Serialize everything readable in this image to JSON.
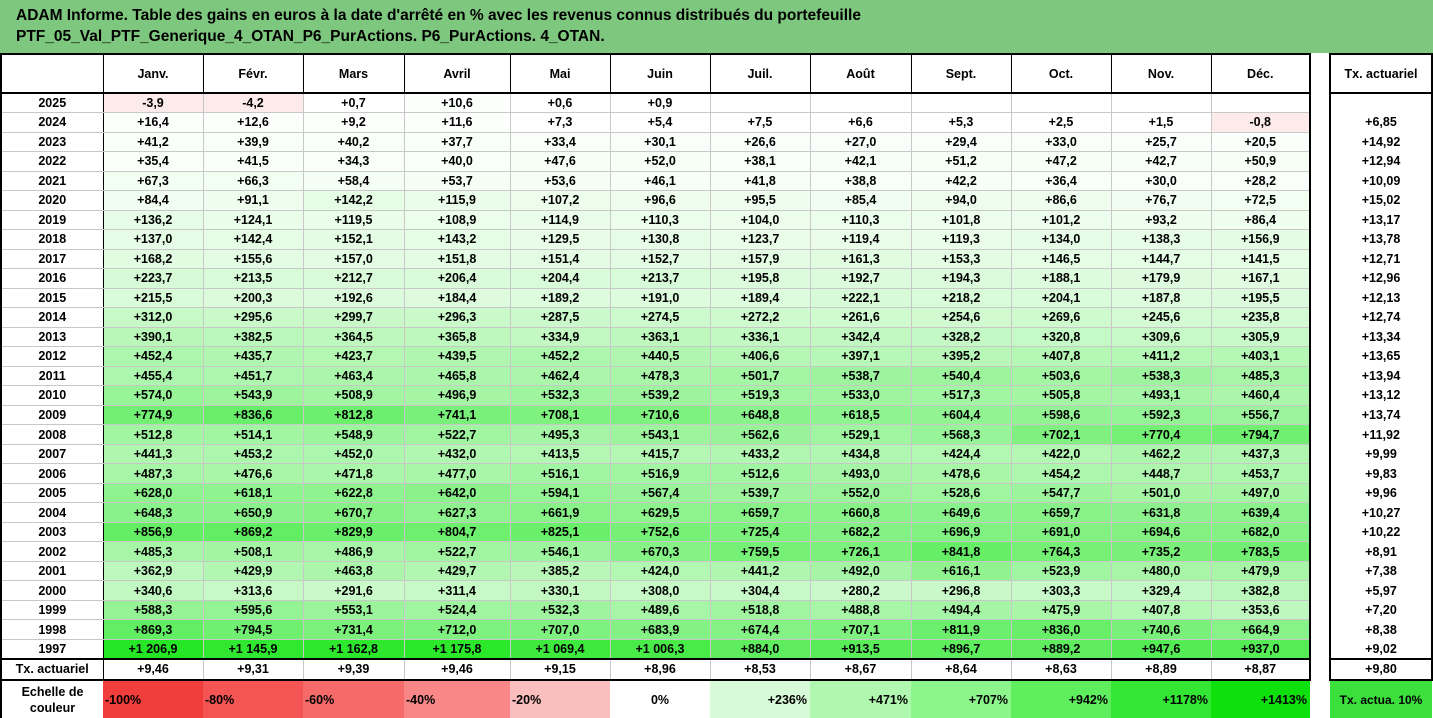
{
  "title": {
    "line1": "ADAM Informe. Table des gains en euros à la date d'arrêté en % avec les revenus connus distribués du portefeuille",
    "line2": "PTF_05_Val_PTF_Generique_4_OTAN_P6_PurActions. P6_PurActions. 4_OTAN."
  },
  "months": [
    "Janv.",
    "Févr.",
    "Mars",
    "Avril",
    "Mai",
    "Juin",
    "Juil.",
    "Août",
    "Sept.",
    "Oct.",
    "Nov.",
    "Déc."
  ],
  "side_header": "Tx. actuariel",
  "rows": [
    {
      "year": "2025",
      "values": [
        "-3,9",
        "-4,2",
        "+0,7",
        "+10,6",
        "+0,6",
        "+0,9",
        "",
        "",
        "",
        "",
        "",
        ""
      ],
      "tx": ""
    },
    {
      "year": "2024",
      "values": [
        "+16,4",
        "+12,6",
        "+9,2",
        "+11,6",
        "+7,3",
        "+5,4",
        "+7,5",
        "+6,6",
        "+5,3",
        "+2,5",
        "+1,5",
        "-0,8"
      ],
      "tx": "+6,85"
    },
    {
      "year": "2023",
      "values": [
        "+41,2",
        "+39,9",
        "+40,2",
        "+37,7",
        "+33,4",
        "+30,1",
        "+26,6",
        "+27,0",
        "+29,4",
        "+33,0",
        "+25,7",
        "+20,5"
      ],
      "tx": "+14,92"
    },
    {
      "year": "2022",
      "values": [
        "+35,4",
        "+41,5",
        "+34,3",
        "+40,0",
        "+47,6",
        "+52,0",
        "+38,1",
        "+42,1",
        "+51,2",
        "+47,2",
        "+42,7",
        "+50,9"
      ],
      "tx": "+12,94"
    },
    {
      "year": "2021",
      "values": [
        "+67,3",
        "+66,3",
        "+58,4",
        "+53,7",
        "+53,6",
        "+46,1",
        "+41,8",
        "+38,8",
        "+42,2",
        "+36,4",
        "+30,0",
        "+28,2"
      ],
      "tx": "+10,09"
    },
    {
      "year": "2020",
      "values": [
        "+84,4",
        "+91,1",
        "+142,2",
        "+115,9",
        "+107,2",
        "+96,6",
        "+95,5",
        "+85,4",
        "+94,0",
        "+86,6",
        "+76,7",
        "+72,5"
      ],
      "tx": "+15,02"
    },
    {
      "year": "2019",
      "values": [
        "+136,2",
        "+124,1",
        "+119,5",
        "+108,9",
        "+114,9",
        "+110,3",
        "+104,0",
        "+110,3",
        "+101,8",
        "+101,2",
        "+93,2",
        "+86,4"
      ],
      "tx": "+13,17"
    },
    {
      "year": "2018",
      "values": [
        "+137,0",
        "+142,4",
        "+152,1",
        "+143,2",
        "+129,5",
        "+130,8",
        "+123,7",
        "+119,4",
        "+119,3",
        "+134,0",
        "+138,3",
        "+156,9"
      ],
      "tx": "+13,78"
    },
    {
      "year": "2017",
      "values": [
        "+168,2",
        "+155,6",
        "+157,0",
        "+151,8",
        "+151,4",
        "+152,7",
        "+157,9",
        "+161,3",
        "+153,3",
        "+146,5",
        "+144,7",
        "+141,5"
      ],
      "tx": "+12,71"
    },
    {
      "year": "2016",
      "values": [
        "+223,7",
        "+213,5",
        "+212,7",
        "+206,4",
        "+204,4",
        "+213,7",
        "+195,8",
        "+192,7",
        "+194,3",
        "+188,1",
        "+179,9",
        "+167,1"
      ],
      "tx": "+12,96"
    },
    {
      "year": "2015",
      "values": [
        "+215,5",
        "+200,3",
        "+192,6",
        "+184,4",
        "+189,2",
        "+191,0",
        "+189,4",
        "+222,1",
        "+218,2",
        "+204,1",
        "+187,8",
        "+195,5"
      ],
      "tx": "+12,13"
    },
    {
      "year": "2014",
      "values": [
        "+312,0",
        "+295,6",
        "+299,7",
        "+296,3",
        "+287,5",
        "+274,5",
        "+272,2",
        "+261,6",
        "+254,6",
        "+269,6",
        "+245,6",
        "+235,8"
      ],
      "tx": "+12,74"
    },
    {
      "year": "2013",
      "values": [
        "+390,1",
        "+382,5",
        "+364,5",
        "+365,8",
        "+334,9",
        "+363,1",
        "+336,1",
        "+342,4",
        "+328,2",
        "+320,8",
        "+309,6",
        "+305,9"
      ],
      "tx": "+13,34"
    },
    {
      "year": "2012",
      "values": [
        "+452,4",
        "+435,7",
        "+423,7",
        "+439,5",
        "+452,2",
        "+440,5",
        "+406,6",
        "+397,1",
        "+395,2",
        "+407,8",
        "+411,2",
        "+403,1"
      ],
      "tx": "+13,65"
    },
    {
      "year": "2011",
      "values": [
        "+455,4",
        "+451,7",
        "+463,4",
        "+465,8",
        "+462,4",
        "+478,3",
        "+501,7",
        "+538,7",
        "+540,4",
        "+503,6",
        "+538,3",
        "+485,3"
      ],
      "tx": "+13,94"
    },
    {
      "year": "2010",
      "values": [
        "+574,0",
        "+543,9",
        "+508,9",
        "+496,9",
        "+532,3",
        "+539,2",
        "+519,3",
        "+533,0",
        "+517,3",
        "+505,8",
        "+493,1",
        "+460,4"
      ],
      "tx": "+13,12"
    },
    {
      "year": "2009",
      "values": [
        "+774,9",
        "+836,6",
        "+812,8",
        "+741,1",
        "+708,1",
        "+710,6",
        "+648,8",
        "+618,5",
        "+604,4",
        "+598,6",
        "+592,3",
        "+556,7"
      ],
      "tx": "+13,74"
    },
    {
      "year": "2008",
      "values": [
        "+512,8",
        "+514,1",
        "+548,9",
        "+522,7",
        "+495,3",
        "+543,1",
        "+562,6",
        "+529,1",
        "+568,3",
        "+702,1",
        "+770,4",
        "+794,7"
      ],
      "tx": "+11,92"
    },
    {
      "year": "2007",
      "values": [
        "+441,3",
        "+453,2",
        "+452,0",
        "+432,0",
        "+413,5",
        "+415,7",
        "+433,2",
        "+434,8",
        "+424,4",
        "+422,0",
        "+462,2",
        "+437,3"
      ],
      "tx": "+9,99"
    },
    {
      "year": "2006",
      "values": [
        "+487,3",
        "+476,6",
        "+471,8",
        "+477,0",
        "+516,1",
        "+516,9",
        "+512,6",
        "+493,0",
        "+478,6",
        "+454,2",
        "+448,7",
        "+453,7"
      ],
      "tx": "+9,83"
    },
    {
      "year": "2005",
      "values": [
        "+628,0",
        "+618,1",
        "+622,8",
        "+642,0",
        "+594,1",
        "+567,4",
        "+539,7",
        "+552,0",
        "+528,6",
        "+547,7",
        "+501,0",
        "+497,0"
      ],
      "tx": "+9,96"
    },
    {
      "year": "2004",
      "values": [
        "+648,3",
        "+650,9",
        "+670,7",
        "+627,3",
        "+661,9",
        "+629,5",
        "+659,7",
        "+660,8",
        "+649,6",
        "+659,7",
        "+631,8",
        "+639,4"
      ],
      "tx": "+10,27"
    },
    {
      "year": "2003",
      "values": [
        "+856,9",
        "+869,2",
        "+829,9",
        "+804,7",
        "+825,1",
        "+752,6",
        "+725,4",
        "+682,2",
        "+696,9",
        "+691,0",
        "+694,6",
        "+682,0"
      ],
      "tx": "+10,22"
    },
    {
      "year": "2002",
      "values": [
        "+485,3",
        "+508,1",
        "+486,9",
        "+522,7",
        "+546,1",
        "+670,3",
        "+759,5",
        "+726,1",
        "+841,8",
        "+764,3",
        "+735,2",
        "+783,5"
      ],
      "tx": "+8,91"
    },
    {
      "year": "2001",
      "values": [
        "+362,9",
        "+429,9",
        "+463,8",
        "+429,7",
        "+385,2",
        "+424,0",
        "+441,2",
        "+492,0",
        "+616,1",
        "+523,9",
        "+480,0",
        "+479,9"
      ],
      "tx": "+7,38"
    },
    {
      "year": "2000",
      "values": [
        "+340,6",
        "+313,6",
        "+291,6",
        "+311,4",
        "+330,1",
        "+308,0",
        "+304,4",
        "+280,2",
        "+296,8",
        "+303,3",
        "+329,4",
        "+382,8"
      ],
      "tx": "+5,97"
    },
    {
      "year": "1999",
      "values": [
        "+588,3",
        "+595,6",
        "+553,1",
        "+524,4",
        "+532,3",
        "+489,6",
        "+518,8",
        "+488,8",
        "+494,4",
        "+475,9",
        "+407,8",
        "+353,6"
      ],
      "tx": "+7,20"
    },
    {
      "year": "1998",
      "values": [
        "+869,3",
        "+794,5",
        "+731,4",
        "+712,0",
        "+707,0",
        "+683,9",
        "+674,4",
        "+707,1",
        "+811,9",
        "+836,0",
        "+740,6",
        "+664,9"
      ],
      "tx": "+8,38"
    },
    {
      "year": "1997",
      "values": [
        "+1 206,9",
        "+1 145,9",
        "+1 162,8",
        "+1 175,8",
        "+1 069,4",
        "+1 006,3",
        "+884,0",
        "+913,5",
        "+896,7",
        "+889,2",
        "+947,6",
        "+937,0"
      ],
      "tx": "+9,02"
    }
  ],
  "tx_row": {
    "label": "Tx. actuariel",
    "values": [
      "+9,46",
      "+9,31",
      "+9,39",
      "+9,46",
      "+9,15",
      "+8,96",
      "+8,53",
      "+8,67",
      "+8,64",
      "+8,63",
      "+8,89",
      "+8,87"
    ],
    "total": "+9,80"
  },
  "scale": {
    "label": "Echelle de couleur",
    "items": [
      {
        "label": "-100%",
        "color": "#f23d3d",
        "align": "left"
      },
      {
        "label": "-80%",
        "color": "#f45454",
        "align": "left"
      },
      {
        "label": "-60%",
        "color": "#f66a6a",
        "align": "left"
      },
      {
        "label": "-40%",
        "color": "#f98787",
        "align": "left"
      },
      {
        "label": "-20%",
        "color": "#fbbebe",
        "align": "left"
      },
      {
        "label": "0%",
        "color": "#ffffff",
        "align": "center"
      },
      {
        "label": "+236%",
        "color": "#d6fbd6",
        "align": "right"
      },
      {
        "label": "+471%",
        "color": "#b0f8b0",
        "align": "right"
      },
      {
        "label": "+707%",
        "color": "#8cf58c",
        "align": "right"
      },
      {
        "label": "+942%",
        "color": "#5eee5e",
        "align": "right"
      },
      {
        "label": "+1178%",
        "color": "#33e633",
        "align": "right"
      },
      {
        "label": "+1413%",
        "color": "#0de00d",
        "align": "right"
      }
    ],
    "side_label": "Tx. actua. 10%",
    "side_color": "#3ce03c"
  },
  "colors": {
    "header_bg": "#7ec77e",
    "positive_max": 1413,
    "negative_light": "#fdeaea"
  }
}
